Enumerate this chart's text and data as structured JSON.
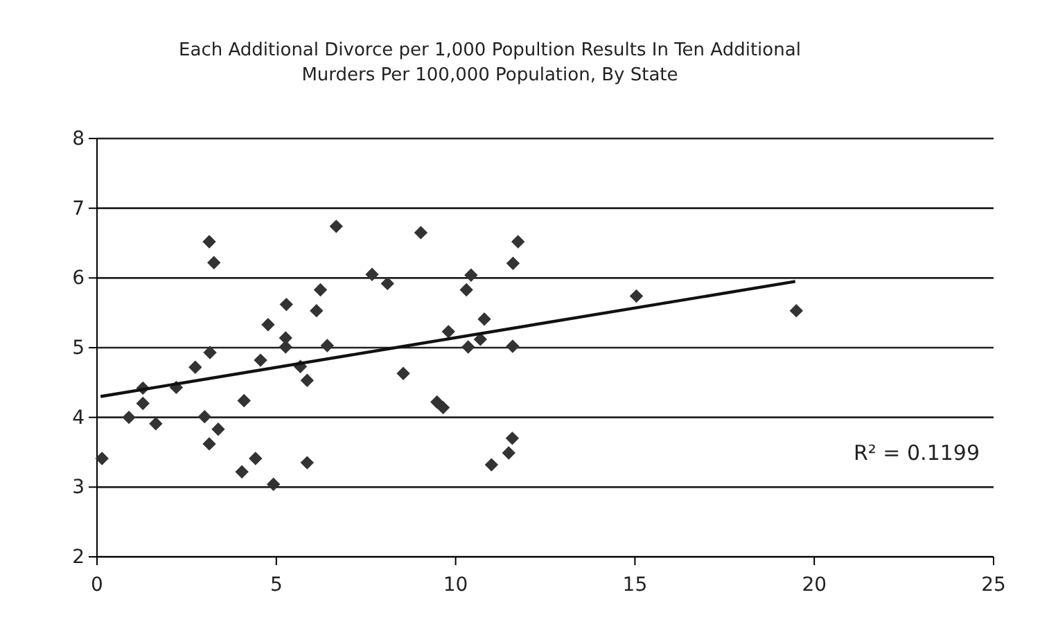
{
  "chart_data": {
    "type": "scatter",
    "title": "Each Additional Divorce per 1,000 Popultion Results In Ten Additional Murders Per 100,000 Population, By State",
    "xlim": [
      0,
      25
    ],
    "xticks": [
      0,
      5,
      10,
      15,
      20,
      25
    ],
    "ylim": [
      2,
      8
    ],
    "yticks": [
      2,
      3,
      4,
      5,
      6,
      7,
      8
    ],
    "grid": "y",
    "marker": "diamond",
    "annotations": [
      "R² = 0.1199"
    ],
    "series": [
      {
        "color": "#333333",
        "x": [
          0.14,
          0.89,
          1.28,
          1.28,
          1.64,
          2.21,
          2.74,
          3.0,
          3.13,
          3.26,
          3.15,
          3.13,
          3.38,
          4.04,
          4.1,
          4.42,
          4.56,
          4.77,
          4.92,
          5.26,
          5.26,
          5.28,
          5.67,
          5.86,
          5.86,
          6.12,
          6.23,
          6.42,
          6.67,
          9.03,
          11.74,
          11.6,
          7.67,
          8.1,
          10.43,
          10.3,
          10.8,
          9.8,
          10.69,
          10.35,
          11.59,
          8.54,
          9.48,
          9.65,
          11.58,
          11.48,
          11.0,
          15.04,
          19.5
        ],
        "values": [
          3.41,
          4.0,
          4.42,
          4.2,
          3.91,
          4.43,
          4.72,
          4.01,
          6.52,
          6.22,
          4.93,
          3.62,
          3.83,
          3.22,
          4.24,
          3.41,
          4.82,
          5.33,
          3.04,
          5.14,
          5.01,
          5.62,
          4.73,
          4.53,
          3.35,
          5.53,
          5.83,
          5.03,
          6.74,
          6.65,
          6.52,
          6.21,
          6.05,
          5.92,
          6.04,
          5.83,
          5.41,
          5.23,
          5.12,
          5.01,
          5.02,
          4.63,
          4.22,
          4.14,
          3.7,
          3.49,
          3.32,
          5.74,
          5.53
        ]
      },
      {
        "type": "line",
        "color": "#111111",
        "x": [
          0.1,
          19.47
        ],
        "values": [
          4.3,
          5.95
        ],
        "marker": "none"
      }
    ]
  }
}
